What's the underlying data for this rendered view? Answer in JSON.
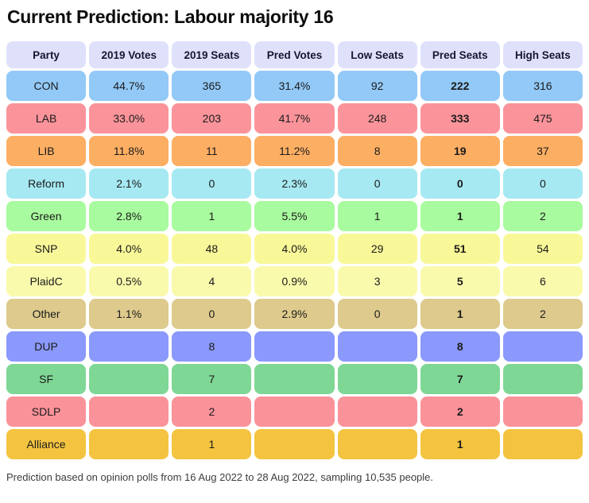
{
  "title": "Current Prediction: Labour majority 16",
  "footer": "Prediction based on opinion polls from 16 Aug 2022 to 28 Aug 2022, sampling 10,535 people.",
  "chart_data": {
    "type": "table",
    "title": "Current Prediction: Labour majority 16",
    "columns": [
      "Party",
      "2019 Votes",
      "2019 Seats",
      "Pred Votes",
      "Low Seats",
      "Pred Seats",
      "High Seats"
    ],
    "rows": [
      [
        "CON",
        "44.7%",
        "365",
        "31.4%",
        "92",
        "222",
        "316"
      ],
      [
        "LAB",
        "33.0%",
        "203",
        "41.7%",
        "248",
        "333",
        "475"
      ],
      [
        "LIB",
        "11.8%",
        "11",
        "11.2%",
        "8",
        "19",
        "37"
      ],
      [
        "Reform",
        "2.1%",
        "0",
        "2.3%",
        "0",
        "0",
        "0"
      ],
      [
        "Green",
        "2.8%",
        "1",
        "5.5%",
        "1",
        "1",
        "2"
      ],
      [
        "SNP",
        "4.0%",
        "48",
        "4.0%",
        "29",
        "51",
        "54"
      ],
      [
        "PlaidC",
        "0.5%",
        "4",
        "0.9%",
        "3",
        "5",
        "6"
      ],
      [
        "Other",
        "1.1%",
        "0",
        "2.9%",
        "0",
        "1",
        "2"
      ],
      [
        "DUP",
        "",
        "8",
        "",
        "",
        "8",
        ""
      ],
      [
        "SF",
        "",
        "7",
        "",
        "",
        "7",
        ""
      ],
      [
        "SDLP",
        "",
        "2",
        "",
        "",
        "2",
        ""
      ],
      [
        "Alliance",
        "",
        "1",
        "",
        "",
        "1",
        ""
      ]
    ],
    "bold_column": "Pred Seats",
    "header_color": "#dfe1fb",
    "row_colors": [
      "#92c9f7",
      "#fa949a",
      "#fcae63",
      "#a6e9f2",
      "#a8fb9e",
      "#f9f899",
      "#fafaad",
      "#ddca8c",
      "#8a99fb",
      "#7fd795",
      "#fa929a",
      "#f4c440"
    ]
  }
}
